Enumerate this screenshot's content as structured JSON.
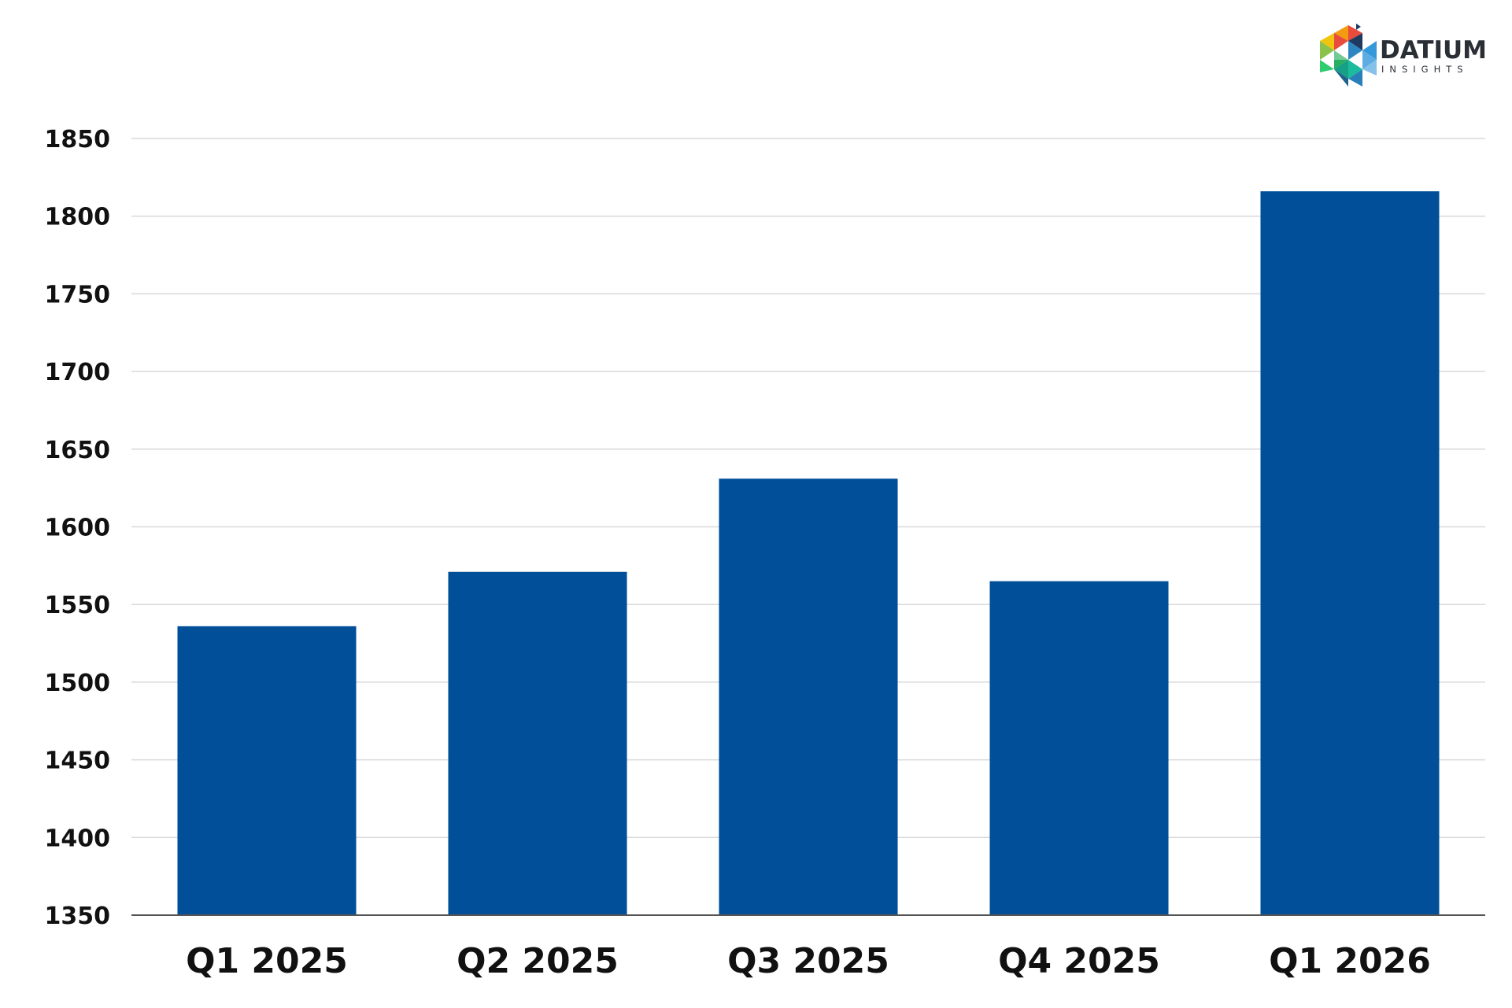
{
  "brand": {
    "name": "DATIUM",
    "tagline": "INSIGHTS"
  },
  "colors": {
    "bar": "#004f98",
    "grid": "#d9d9d9",
    "axis": "#555555",
    "text": "#111111"
  },
  "chart_data": {
    "type": "bar",
    "title": "",
    "xlabel": "",
    "ylabel": "",
    "categories": [
      "Q1 2025",
      "Q2 2025",
      "Q3 2025",
      "Q4 2025",
      "Q1 2026"
    ],
    "values": [
      1536,
      1571,
      1631,
      1565,
      1816
    ],
    "ylim": [
      1350,
      1850
    ],
    "yticks": [
      1350,
      1400,
      1450,
      1500,
      1550,
      1600,
      1650,
      1700,
      1750,
      1800,
      1850
    ],
    "grid": true,
    "legend": "none"
  }
}
